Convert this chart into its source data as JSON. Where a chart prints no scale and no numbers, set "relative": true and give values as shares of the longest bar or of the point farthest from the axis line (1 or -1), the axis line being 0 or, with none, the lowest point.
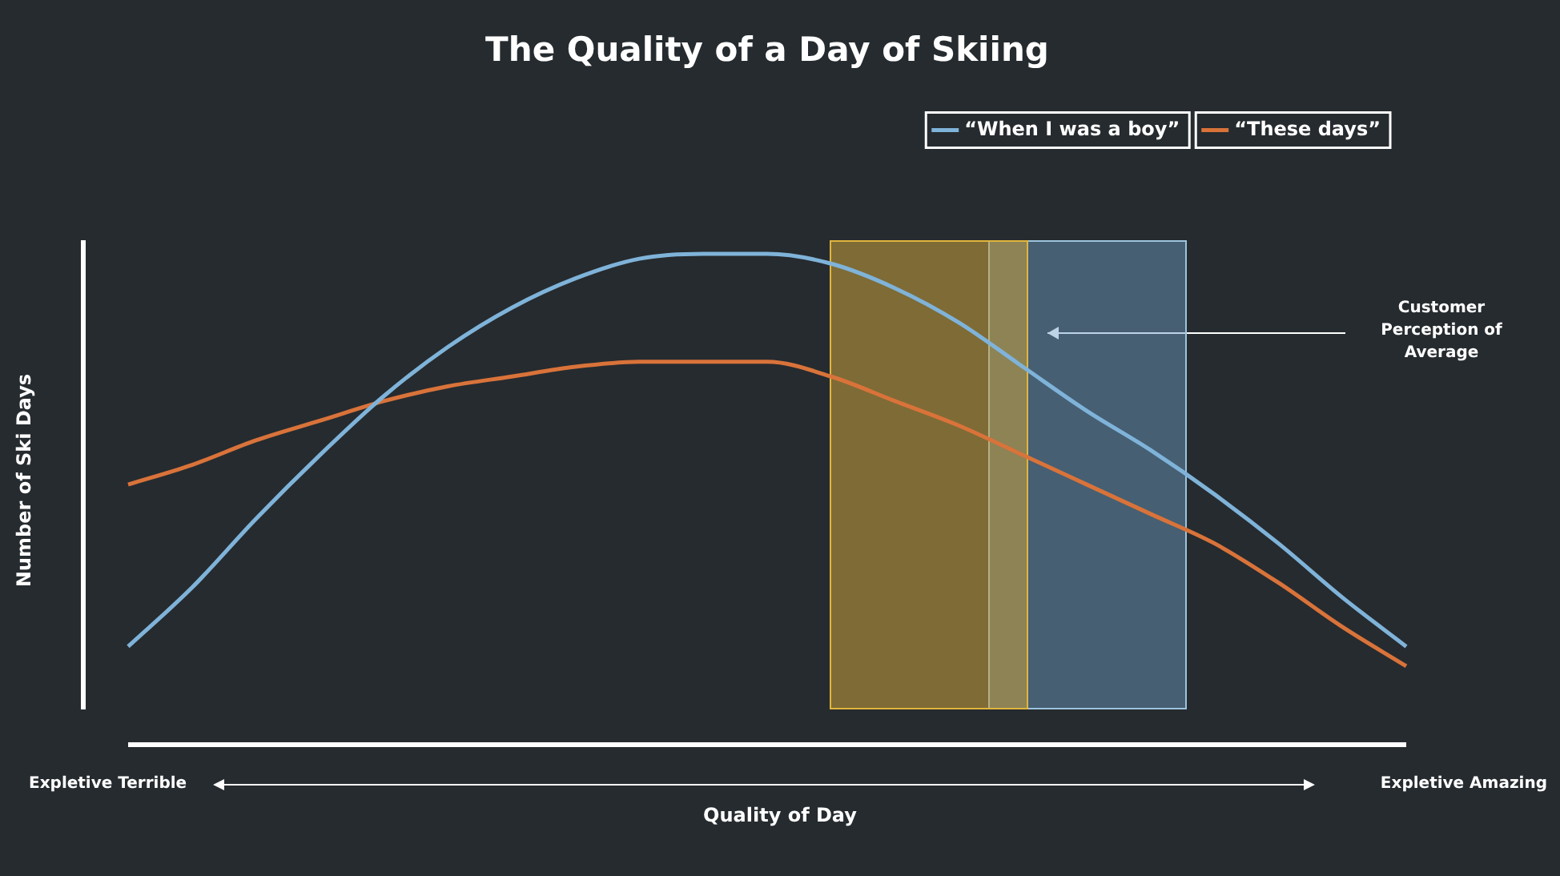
{
  "chart_data": {
    "type": "line",
    "title": "The Quality of a Day of Skiing",
    "xlabel": "Quality of Day",
    "ylabel": "Number of Ski Days",
    "relative": true,
    "legend": "top right",
    "line_style": "solid",
    "categories": [
      null,
      null,
      null,
      null,
      null,
      null,
      null,
      null,
      null,
      null,
      null,
      null,
      null,
      null,
      null,
      null,
      null,
      null,
      null,
      null,
      null
    ],
    "series": [
      {
        "name": "“When I was a boy”",
        "color": "#7fb3d9",
        "values": [
          0.2,
          0.32,
          0.46,
          0.59,
          0.71,
          0.81,
          0.89,
          0.95,
          0.99,
          1.0,
          1.0,
          0.98,
          0.93,
          0.86,
          0.77,
          0.68,
          0.6,
          0.51,
          0.41,
          0.3,
          0.2
        ]
      },
      {
        "name": "“These days”",
        "color": "#d9733a",
        "values": [
          0.53,
          0.57,
          0.62,
          0.66,
          0.7,
          0.73,
          0.75,
          0.77,
          0.78,
          0.78,
          0.78,
          0.75,
          0.7,
          0.65,
          0.59,
          0.53,
          0.47,
          0.41,
          0.33,
          0.24,
          0.16
        ]
      }
    ],
    "annotations": [
      "Customer Perception of Average",
      "Expletive Terrible",
      "Expletive Amazing"
    ]
  }
}
